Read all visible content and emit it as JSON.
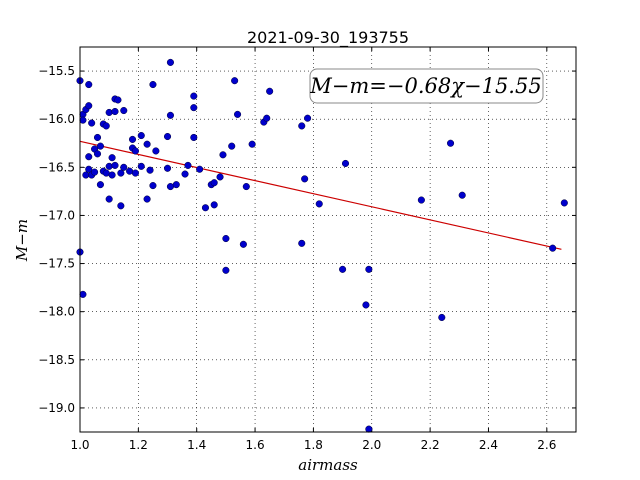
{
  "chart_data": {
    "type": "scatter",
    "title": "2021-09-30_193755",
    "xlabel": "airmass",
    "ylabel": "M−m",
    "xlim": [
      1.0,
      2.7
    ],
    "ylim": [
      -15.25,
      -19.25
    ],
    "y_inverted": true,
    "grid": true,
    "x_ticks": [
      "1.0",
      "1.2",
      "1.4",
      "1.6",
      "1.8",
      "2.0",
      "2.2",
      "2.4",
      "2.6"
    ],
    "y_ticks": [
      "−15.5",
      "−16.0",
      "−16.5",
      "−17.0",
      "−17.5",
      "−18.0",
      "−18.5",
      "−19.0"
    ],
    "annotation": "M−m=−0.68χ−15.55",
    "point_color": "#0000cc",
    "fit_color": "#cc0000",
    "fit": {
      "slope": -0.68,
      "intercept": -15.55,
      "x_range": [
        1.0,
        2.65
      ]
    },
    "points": [
      [
        1.0,
        -15.6
      ],
      [
        1.0,
        -17.38
      ],
      [
        1.01,
        -17.82
      ],
      [
        1.01,
        -15.95
      ],
      [
        1.01,
        -16.01
      ],
      [
        1.02,
        -15.9
      ],
      [
        1.02,
        -16.58
      ],
      [
        1.03,
        -15.86
      ],
      [
        1.03,
        -15.64
      ],
      [
        1.03,
        -16.39
      ],
      [
        1.03,
        -16.52
      ],
      [
        1.04,
        -16.04
      ],
      [
        1.04,
        -16.58
      ],
      [
        1.05,
        -16.31
      ],
      [
        1.05,
        -16.55
      ],
      [
        1.06,
        -16.19
      ],
      [
        1.06,
        -16.36
      ],
      [
        1.07,
        -16.68
      ],
      [
        1.07,
        -16.28
      ],
      [
        1.08,
        -16.05
      ],
      [
        1.08,
        -16.54
      ],
      [
        1.09,
        -16.07
      ],
      [
        1.09,
        -16.56
      ],
      [
        1.1,
        -15.93
      ],
      [
        1.1,
        -16.49
      ],
      [
        1.1,
        -16.83
      ],
      [
        1.11,
        -16.4
      ],
      [
        1.11,
        -16.58
      ],
      [
        1.12,
        -15.79
      ],
      [
        1.12,
        -15.92
      ],
      [
        1.12,
        -16.48
      ],
      [
        1.13,
        -15.8
      ],
      [
        1.14,
        -16.56
      ],
      [
        1.14,
        -16.9
      ],
      [
        1.15,
        -15.91
      ],
      [
        1.15,
        -16.5
      ],
      [
        1.17,
        -16.54
      ],
      [
        1.18,
        -16.21
      ],
      [
        1.18,
        -16.3
      ],
      [
        1.19,
        -16.56
      ],
      [
        1.19,
        -16.33
      ],
      [
        1.21,
        -16.17
      ],
      [
        1.21,
        -16.49
      ],
      [
        1.23,
        -16.26
      ],
      [
        1.23,
        -16.83
      ],
      [
        1.24,
        -16.53
      ],
      [
        1.25,
        -15.64
      ],
      [
        1.25,
        -16.69
      ],
      [
        1.26,
        -16.33
      ],
      [
        1.3,
        -16.18
      ],
      [
        1.3,
        -16.51
      ],
      [
        1.31,
        -15.96
      ],
      [
        1.31,
        -15.41
      ],
      [
        1.31,
        -16.7
      ],
      [
        1.33,
        -16.68
      ],
      [
        1.36,
        -16.57
      ],
      [
        1.37,
        -16.48
      ],
      [
        1.39,
        -15.76
      ],
      [
        1.39,
        -15.88
      ],
      [
        1.39,
        -16.19
      ],
      [
        1.41,
        -16.52
      ],
      [
        1.43,
        -16.92
      ],
      [
        1.45,
        -16.68
      ],
      [
        1.46,
        -16.89
      ],
      [
        1.46,
        -16.66
      ],
      [
        1.48,
        -16.6
      ],
      [
        1.49,
        -16.37
      ],
      [
        1.5,
        -17.24
      ],
      [
        1.5,
        -17.57
      ],
      [
        1.52,
        -16.28
      ],
      [
        1.53,
        -15.6
      ],
      [
        1.54,
        -15.95
      ],
      [
        1.56,
        -17.3
      ],
      [
        1.57,
        -16.7
      ],
      [
        1.59,
        -16.26
      ],
      [
        1.63,
        -16.03
      ],
      [
        1.64,
        -15.99
      ],
      [
        1.65,
        -15.71
      ],
      [
        1.76,
        -16.07
      ],
      [
        1.76,
        -17.29
      ],
      [
        1.77,
        -16.62
      ],
      [
        1.78,
        -15.99
      ],
      [
        1.82,
        -16.88
      ],
      [
        1.9,
        -17.56
      ],
      [
        1.91,
        -16.46
      ],
      [
        1.98,
        -17.93
      ],
      [
        1.99,
        -17.56
      ],
      [
        1.99,
        -19.22
      ],
      [
        2.17,
        -16.84
      ],
      [
        2.24,
        -18.06
      ],
      [
        2.27,
        -16.25
      ],
      [
        2.31,
        -16.79
      ],
      [
        2.62,
        -17.34
      ],
      [
        2.66,
        -16.87
      ]
    ]
  }
}
